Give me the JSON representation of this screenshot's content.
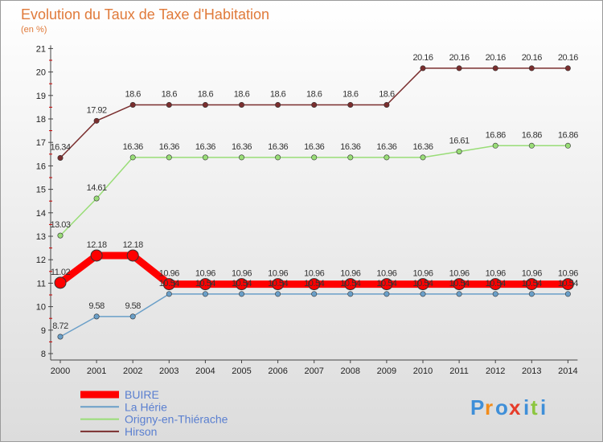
{
  "chart_data": {
    "type": "line",
    "title": "Evolution du Taux de Taxe d'Habitation",
    "subtitle": "(en %)",
    "x": [
      "2000",
      "2001",
      "2002",
      "2003",
      "2004",
      "2005",
      "2006",
      "2007",
      "2008",
      "2009",
      "2010",
      "2011",
      "2012",
      "2013",
      "2014"
    ],
    "yticks": [
      8,
      9,
      10,
      11,
      12,
      13,
      14,
      15,
      16,
      17,
      18,
      19,
      20,
      21
    ],
    "ylim": [
      8,
      21
    ],
    "grid": false,
    "legend_position": "bottom-left",
    "series": [
      {
        "name": "BUIRE",
        "color": "#ff0000",
        "values": [
          11.02,
          12.18,
          12.18,
          10.96,
          10.96,
          10.96,
          10.96,
          10.96,
          10.96,
          10.96,
          10.96,
          10.96,
          10.96,
          10.96,
          10.96
        ],
        "labels": [
          "11.02",
          "12.18",
          "12.18",
          "10.96",
          "10.96",
          "10.96",
          "10.96",
          "10.96",
          "10.96",
          "10.96",
          "10.96",
          "10.96",
          "10.96",
          "10.96",
          "10.96"
        ]
      },
      {
        "name": "La Hérie",
        "color": "#6a9fc8",
        "values": [
          8.72,
          9.58,
          9.58,
          10.54,
          10.54,
          10.54,
          10.54,
          10.54,
          10.54,
          10.54,
          10.54,
          10.54,
          10.54,
          10.54,
          10.54
        ],
        "labels": [
          "8.72",
          "9.58",
          "9.58",
          "10.54",
          "10.54",
          "10.54",
          "10.54",
          "10.54",
          "10.54",
          "10.54",
          "10.54",
          "10.54",
          "10.54",
          "10.54",
          "10.54"
        ]
      },
      {
        "name": "Origny-en-Thiérache",
        "color": "#99dd77",
        "values": [
          13.03,
          14.61,
          16.36,
          16.36,
          16.36,
          16.36,
          16.36,
          16.36,
          16.36,
          16.36,
          16.36,
          16.61,
          16.86,
          16.86,
          16.86
        ],
        "labels": [
          "13.03",
          "14.61",
          "16.36",
          "16.36",
          "16.36",
          "16.36",
          "16.36",
          "16.36",
          "16.36",
          "16.36",
          "16.36",
          "16.61",
          "16.86",
          "16.86",
          "16.86"
        ]
      },
      {
        "name": "Hirson",
        "color": "#7a2e2e",
        "values": [
          16.34,
          17.92,
          18.6,
          18.6,
          18.6,
          18.6,
          18.6,
          18.6,
          18.6,
          18.6,
          20.16,
          20.16,
          20.16,
          20.16,
          20.16
        ],
        "labels": [
          "16.34",
          "17.92",
          "18.6",
          "18.6",
          "18.6",
          "18.6",
          "18.6",
          "18.6",
          "18.6",
          "18.6",
          "20.16",
          "20.16",
          "20.16",
          "20.16",
          "20.16"
        ]
      }
    ]
  },
  "logo": {
    "letters": [
      "P",
      "r",
      "o",
      "x",
      "i",
      "t",
      "i"
    ],
    "colors": [
      "#3f8fd8",
      "#f28c1a",
      "#3f8fd8",
      "#e63c2a",
      "#3f8fd8",
      "#8cc63f",
      "#3f8fd8"
    ]
  }
}
